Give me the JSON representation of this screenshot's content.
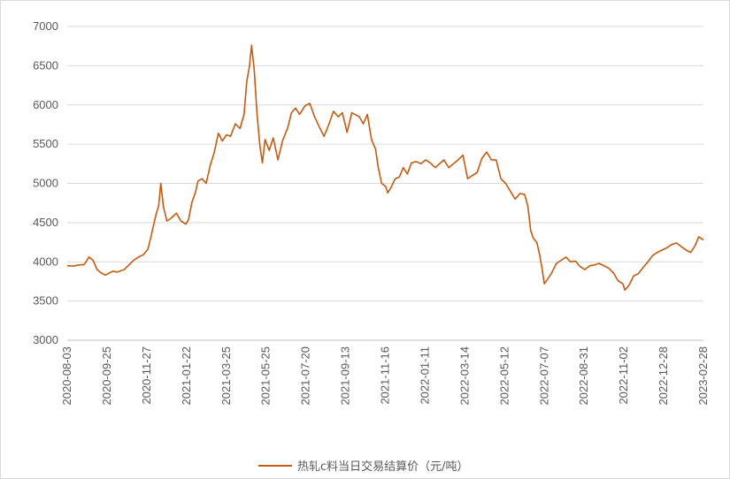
{
  "chart_data": {
    "type": "line",
    "title": "",
    "xlabel": "",
    "ylabel": "",
    "ylim": [
      3000,
      7000
    ],
    "y_ticks": [
      3000,
      3500,
      4000,
      4500,
      5000,
      5500,
      6000,
      6500,
      7000
    ],
    "x_range": [
      "2020-08-03",
      "2023-02-28"
    ],
    "x_ticks": [
      "2020-08-03",
      "2020-09-25",
      "2020-11-27",
      "2021-01-22",
      "2021-03-25",
      "2021-05-25",
      "2021-07-20",
      "2021-09-13",
      "2021-11-16",
      "2022-01-11",
      "2022-03-14",
      "2022-05-12",
      "2022-07-07",
      "2022-08-31",
      "2022-11-02",
      "2022-12-28",
      "2023-02-28"
    ],
    "grid": "horizontal",
    "legend_position": "bottom",
    "line_color": "#C55A11",
    "series": [
      {
        "name": "热轧c料当日交易结算价（元/吨）",
        "points": [
          [
            "2020-08-03",
            3950
          ],
          [
            "2020-08-12",
            3945
          ],
          [
            "2020-08-20",
            3960
          ],
          [
            "2020-08-28",
            3965
          ],
          [
            "2020-09-04",
            4060
          ],
          [
            "2020-09-10",
            4020
          ],
          [
            "2020-09-16",
            3900
          ],
          [
            "2020-09-22",
            3860
          ],
          [
            "2020-09-28",
            3830
          ],
          [
            "2020-10-09",
            3880
          ],
          [
            "2020-10-16",
            3870
          ],
          [
            "2020-10-26",
            3900
          ],
          [
            "2020-11-02",
            3960
          ],
          [
            "2020-11-09",
            4020
          ],
          [
            "2020-11-16",
            4060
          ],
          [
            "2020-11-23",
            4090
          ],
          [
            "2020-11-30",
            4160
          ],
          [
            "2020-12-04",
            4300
          ],
          [
            "2020-12-08",
            4450
          ],
          [
            "2020-12-12",
            4600
          ],
          [
            "2020-12-16",
            4720
          ],
          [
            "2020-12-19",
            5000
          ],
          [
            "2020-12-23",
            4700
          ],
          [
            "2020-12-28",
            4520
          ],
          [
            "2021-01-04",
            4560
          ],
          [
            "2021-01-11",
            4620
          ],
          [
            "2021-01-18",
            4520
          ],
          [
            "2021-01-25",
            4480
          ],
          [
            "2021-01-29",
            4540
          ],
          [
            "2021-02-03",
            4760
          ],
          [
            "2021-02-08",
            4880
          ],
          [
            "2021-02-12",
            5030
          ],
          [
            "2021-02-18",
            5060
          ],
          [
            "2021-02-24",
            5000
          ],
          [
            "2021-03-02",
            5230
          ],
          [
            "2021-03-08",
            5400
          ],
          [
            "2021-03-14",
            5640
          ],
          [
            "2021-03-20",
            5540
          ],
          [
            "2021-03-26",
            5620
          ],
          [
            "2021-04-01",
            5600
          ],
          [
            "2021-04-08",
            5760
          ],
          [
            "2021-04-15",
            5700
          ],
          [
            "2021-04-21",
            5880
          ],
          [
            "2021-04-25",
            6300
          ],
          [
            "2021-04-29",
            6500
          ],
          [
            "2021-05-02",
            6760
          ],
          [
            "2021-05-06",
            6450
          ],
          [
            "2021-05-10",
            5900
          ],
          [
            "2021-05-14",
            5500
          ],
          [
            "2021-05-18",
            5260
          ],
          [
            "2021-05-22",
            5560
          ],
          [
            "2021-05-28",
            5420
          ],
          [
            "2021-06-03",
            5580
          ],
          [
            "2021-06-10",
            5300
          ],
          [
            "2021-06-17",
            5550
          ],
          [
            "2021-06-24",
            5700
          ],
          [
            "2021-06-30",
            5900
          ],
          [
            "2021-07-06",
            5960
          ],
          [
            "2021-07-12",
            5880
          ],
          [
            "2021-07-20",
            5990
          ],
          [
            "2021-07-27",
            6020
          ],
          [
            "2021-08-03",
            5850
          ],
          [
            "2021-08-10",
            5720
          ],
          [
            "2021-08-17",
            5600
          ],
          [
            "2021-08-24",
            5750
          ],
          [
            "2021-08-31",
            5920
          ],
          [
            "2021-09-07",
            5850
          ],
          [
            "2021-09-13",
            5900
          ],
          [
            "2021-09-20",
            5650
          ],
          [
            "2021-09-27",
            5900
          ],
          [
            "2021-10-08",
            5850
          ],
          [
            "2021-10-14",
            5760
          ],
          [
            "2021-10-20",
            5880
          ],
          [
            "2021-10-26",
            5560
          ],
          [
            "2021-11-01",
            5440
          ],
          [
            "2021-11-05",
            5200
          ],
          [
            "2021-11-10",
            5000
          ],
          [
            "2021-11-16",
            4960
          ],
          [
            "2021-11-19",
            4880
          ],
          [
            "2021-11-24",
            4950
          ],
          [
            "2021-11-30",
            5060
          ],
          [
            "2021-12-06",
            5080
          ],
          [
            "2021-12-12",
            5200
          ],
          [
            "2021-12-18",
            5120
          ],
          [
            "2021-12-24",
            5260
          ],
          [
            "2021-12-31",
            5280
          ],
          [
            "2022-01-07",
            5250
          ],
          [
            "2022-01-14",
            5300
          ],
          [
            "2022-01-21",
            5260
          ],
          [
            "2022-01-28",
            5200
          ],
          [
            "2022-02-10",
            5300
          ],
          [
            "2022-02-17",
            5200
          ],
          [
            "2022-02-24",
            5250
          ],
          [
            "2022-03-03",
            5300
          ],
          [
            "2022-03-10",
            5360
          ],
          [
            "2022-03-17",
            5060
          ],
          [
            "2022-03-24",
            5100
          ],
          [
            "2022-03-31",
            5140
          ],
          [
            "2022-04-07",
            5320
          ],
          [
            "2022-04-14",
            5400
          ],
          [
            "2022-04-21",
            5300
          ],
          [
            "2022-04-28",
            5300
          ],
          [
            "2022-05-05",
            5060
          ],
          [
            "2022-05-12",
            5000
          ],
          [
            "2022-05-19",
            4900
          ],
          [
            "2022-05-26",
            4800
          ],
          [
            "2022-06-02",
            4870
          ],
          [
            "2022-06-09",
            4860
          ],
          [
            "2022-06-14",
            4700
          ],
          [
            "2022-06-18",
            4400
          ],
          [
            "2022-06-22",
            4300
          ],
          [
            "2022-06-27",
            4250
          ],
          [
            "2022-07-01",
            4100
          ],
          [
            "2022-07-05",
            3900
          ],
          [
            "2022-07-08",
            3720
          ],
          [
            "2022-07-13",
            3780
          ],
          [
            "2022-07-19",
            3860
          ],
          [
            "2022-07-26",
            3980
          ],
          [
            "2022-08-02",
            4020
          ],
          [
            "2022-08-09",
            4060
          ],
          [
            "2022-08-16",
            4000
          ],
          [
            "2022-08-23",
            4010
          ],
          [
            "2022-08-30",
            3940
          ],
          [
            "2022-09-06",
            3900
          ],
          [
            "2022-09-13",
            3950
          ],
          [
            "2022-09-20",
            3960
          ],
          [
            "2022-09-27",
            3980
          ],
          [
            "2022-10-11",
            3920
          ],
          [
            "2022-10-18",
            3860
          ],
          [
            "2022-10-25",
            3760
          ],
          [
            "2022-11-01",
            3720
          ],
          [
            "2022-11-04",
            3640
          ],
          [
            "2022-11-10",
            3700
          ],
          [
            "2022-11-17",
            3820
          ],
          [
            "2022-11-24",
            3850
          ],
          [
            "2022-12-01",
            3930
          ],
          [
            "2022-12-08",
            4000
          ],
          [
            "2022-12-15",
            4080
          ],
          [
            "2022-12-22",
            4120
          ],
          [
            "2022-12-29",
            4150
          ],
          [
            "2023-01-05",
            4180
          ],
          [
            "2023-01-12",
            4220
          ],
          [
            "2023-01-19",
            4240
          ],
          [
            "2023-02-02",
            4150
          ],
          [
            "2023-02-09",
            4120
          ],
          [
            "2023-02-16",
            4210
          ],
          [
            "2023-02-21",
            4320
          ],
          [
            "2023-02-28",
            4280
          ]
        ]
      }
    ]
  }
}
